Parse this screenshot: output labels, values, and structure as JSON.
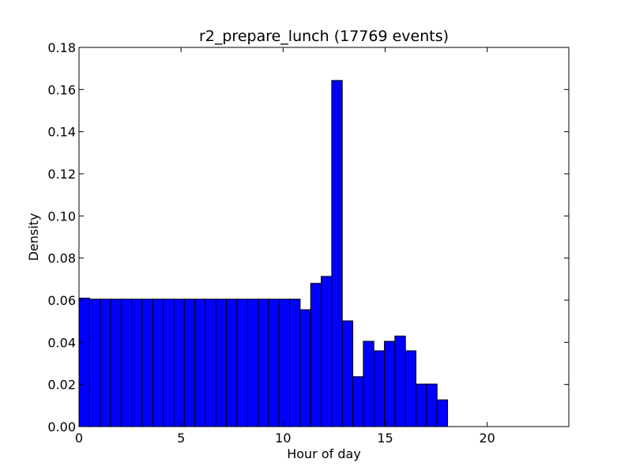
{
  "chart_data": {
    "type": "bar",
    "title": "r2_prepare_lunch (17769 events)",
    "xlabel": "Hour of day",
    "ylabel": "Density",
    "xlim": [
      0,
      24
    ],
    "ylim": [
      0,
      0.18
    ],
    "xticks": [
      0,
      5,
      10,
      15,
      20
    ],
    "xtick_labels": [
      "0",
      "5",
      "10",
      "15",
      "20"
    ],
    "yticks": [
      0.0,
      0.02,
      0.04,
      0.06,
      0.08,
      0.1,
      0.12,
      0.14,
      0.16,
      0.18
    ],
    "ytick_labels": [
      "0.00",
      "0.02",
      "0.04",
      "0.06",
      "0.08",
      "0.10",
      "0.12",
      "0.14",
      "0.16",
      "0.18"
    ],
    "grid": false,
    "bar_color": "#0000ff",
    "edge_color": "#000000",
    "bin_width": 0.516,
    "bins": [
      {
        "x": 0.0,
        "value": 0.061
      },
      {
        "x": 0.516,
        "value": 0.0605
      },
      {
        "x": 1.032,
        "value": 0.0605
      },
      {
        "x": 1.548,
        "value": 0.0605
      },
      {
        "x": 2.064,
        "value": 0.0605
      },
      {
        "x": 2.58,
        "value": 0.0605
      },
      {
        "x": 3.096,
        "value": 0.0605
      },
      {
        "x": 3.612,
        "value": 0.0605
      },
      {
        "x": 4.128,
        "value": 0.0605
      },
      {
        "x": 4.644,
        "value": 0.0605
      },
      {
        "x": 5.16,
        "value": 0.0605
      },
      {
        "x": 5.676,
        "value": 0.0605
      },
      {
        "x": 6.192,
        "value": 0.0605
      },
      {
        "x": 6.708,
        "value": 0.0605
      },
      {
        "x": 7.224,
        "value": 0.0605
      },
      {
        "x": 7.74,
        "value": 0.0605
      },
      {
        "x": 8.256,
        "value": 0.0605
      },
      {
        "x": 8.772,
        "value": 0.0605
      },
      {
        "x": 9.288,
        "value": 0.0605
      },
      {
        "x": 9.804,
        "value": 0.0605
      },
      {
        "x": 10.32,
        "value": 0.0605
      },
      {
        "x": 10.836,
        "value": 0.0555
      },
      {
        "x": 11.352,
        "value": 0.068
      },
      {
        "x": 11.868,
        "value": 0.0713
      },
      {
        "x": 12.384,
        "value": 0.1643
      },
      {
        "x": 12.9,
        "value": 0.0502
      },
      {
        "x": 13.416,
        "value": 0.0237
      },
      {
        "x": 13.932,
        "value": 0.0405
      },
      {
        "x": 14.448,
        "value": 0.036
      },
      {
        "x": 14.964,
        "value": 0.0405
      },
      {
        "x": 15.48,
        "value": 0.043
      },
      {
        "x": 15.996,
        "value": 0.036
      },
      {
        "x": 16.512,
        "value": 0.0202
      },
      {
        "x": 17.028,
        "value": 0.0202
      },
      {
        "x": 17.544,
        "value": 0.0127
      }
    ]
  }
}
